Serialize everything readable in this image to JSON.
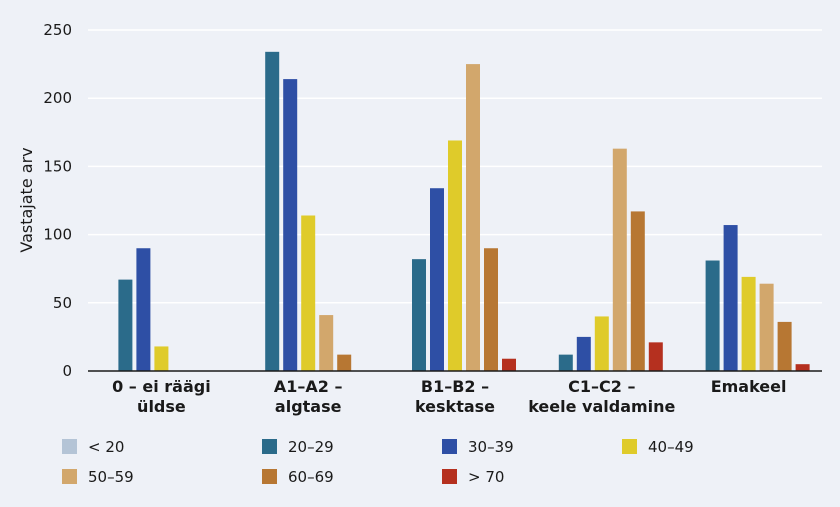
{
  "chart_data": {
    "type": "bar",
    "title": "",
    "xlabel": "",
    "ylabel": "Vastajate arv",
    "ylim": [
      0,
      250
    ],
    "yticks": [
      0,
      50,
      100,
      150,
      200,
      250
    ],
    "grid": true,
    "legend_position": "bottom",
    "categories": [
      [
        "0 – ei räägi",
        "üldse"
      ],
      [
        "A1–A2 –",
        "algtase"
      ],
      [
        "B1–B2 –",
        "kesktase"
      ],
      [
        "C1–C2 –",
        "keele valdamine"
      ],
      [
        "Emakeel"
      ]
    ],
    "series": [
      {
        "name": "< 20",
        "color": "#b4c4d6",
        "values": [
          0,
          0,
          0,
          0,
          0
        ]
      },
      {
        "name": "20–29",
        "color": "#2b6b8a",
        "values": [
          67,
          234,
          82,
          12,
          81
        ]
      },
      {
        "name": "30–39",
        "color": "#2e4fa5",
        "values": [
          90,
          214,
          134,
          25,
          107
        ]
      },
      {
        "name": "40–49",
        "color": "#dfcb2a",
        "values": [
          18,
          114,
          169,
          40,
          69
        ]
      },
      {
        "name": "50–59",
        "color": "#d2a76c",
        "values": [
          0,
          41,
          225,
          163,
          64
        ]
      },
      {
        "name": "60–69",
        "color": "#b77733",
        "values": [
          0,
          12,
          90,
          117,
          36
        ]
      },
      {
        "name": "> 70",
        "color": "#b5301f",
        "values": [
          0,
          0,
          9,
          21,
          5
        ]
      }
    ]
  }
}
